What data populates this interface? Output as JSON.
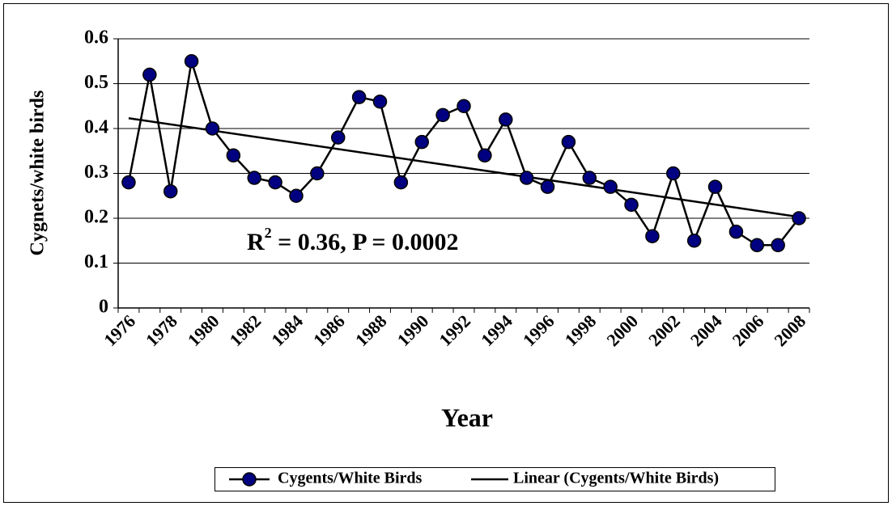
{
  "chart_data": {
    "type": "line",
    "x_label": "Year",
    "y_label": "Cygnets/white birds",
    "categories": [
      "1976",
      null,
      "1978",
      null,
      "1980",
      null,
      "1982",
      null,
      "1984",
      null,
      "1986",
      null,
      "1988",
      null,
      "1990",
      null,
      "1992",
      null,
      "1994",
      null,
      "1996",
      null,
      "1998",
      null,
      "2000",
      null,
      "2002",
      null,
      "2004",
      null,
      "2006",
      null,
      "2008"
    ],
    "series": [
      {
        "name": "Cygents/White Birds",
        "color": "#000080",
        "values": [
          0.28,
          0.52,
          0.26,
          0.55,
          0.4,
          0.34,
          0.29,
          0.28,
          0.25,
          0.3,
          0.38,
          0.47,
          0.46,
          0.28,
          0.37,
          0.43,
          0.45,
          0.34,
          0.42,
          0.29,
          0.27,
          0.37,
          0.29,
          0.27,
          0.23,
          0.16,
          0.3,
          0.15,
          0.27,
          0.17,
          0.14,
          0.14,
          0.2
        ]
      }
    ],
    "trendline": {
      "name": "Linear (Cygents/White Birds)",
      "color": "#000000",
      "start": 0.423,
      "end": 0.203
    },
    "annotation": {
      "base": "R",
      "superscript": "2",
      "rest": " = 0.36, P = 0.0002"
    },
    "ylim": [
      0,
      0.6
    ],
    "yticks": [
      0,
      0.1,
      0.2,
      0.3,
      0.4,
      0.5,
      0.6
    ],
    "grid": true
  }
}
